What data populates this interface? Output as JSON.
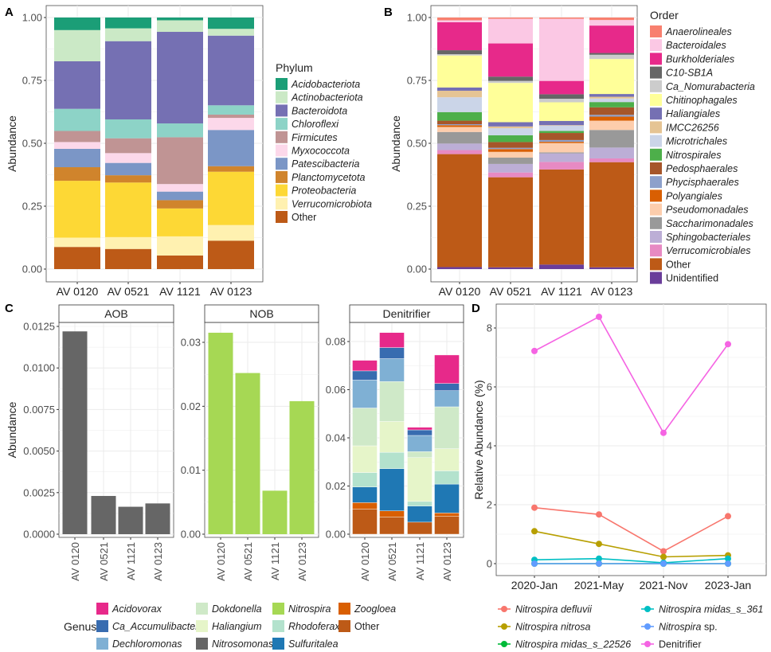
{
  "panel_labels": {
    "a": "A",
    "b": "B",
    "c": "C",
    "d": "D"
  },
  "chart_data": [
    {
      "id": "A",
      "type": "bar",
      "stacked": true,
      "categories": [
        "AV 0120",
        "AV 0521",
        "AV 1121",
        "AV 0123"
      ],
      "ylabel": "Abundance",
      "ylim": [
        0,
        1
      ],
      "yticks": [
        "0.00",
        "0.25",
        "0.50",
        "0.75",
        "1.00"
      ],
      "legend_title": "Phylum",
      "legend_position": "right",
      "series": [
        {
          "name": "Acidobacteriota",
          "italic": true,
          "color": "#1b9e77",
          "values": [
            0.05,
            0.043,
            0.011,
            0.045
          ]
        },
        {
          "name": "Actinobacteriota",
          "italic": true,
          "color": "#cbe9c6",
          "values": [
            0.124,
            0.051,
            0.046,
            0.027
          ]
        },
        {
          "name": "Bacteroidota",
          "italic": true,
          "color": "#7570b3",
          "values": [
            0.189,
            0.311,
            0.364,
            0.277
          ]
        },
        {
          "name": "Chloroflexi",
          "italic": true,
          "color": "#8dd3c7",
          "values": [
            0.088,
            0.075,
            0.055,
            0.037
          ]
        },
        {
          "name": "Firmicutes",
          "italic": true,
          "color": "#c09494",
          "values": [
            0.044,
            0.059,
            0.186,
            0.013
          ]
        },
        {
          "name": "Myxococcota",
          "italic": true,
          "color": "#fcd8ea",
          "values": [
            0.027,
            0.039,
            0.03,
            0.048
          ]
        },
        {
          "name": "Patescibacteria",
          "italic": true,
          "color": "#7b96c6",
          "values": [
            0.073,
            0.049,
            0.034,
            0.144
          ]
        },
        {
          "name": "Planctomycetota",
          "italic": true,
          "color": "#d0842c",
          "values": [
            0.054,
            0.029,
            0.033,
            0.022
          ]
        },
        {
          "name": "Proteobacteria",
          "italic": true,
          "color": "#fdd835",
          "values": [
            0.226,
            0.217,
            0.111,
            0.212
          ]
        },
        {
          "name": "Verrucomicrobiota",
          "italic": true,
          "color": "#fff1b0",
          "values": [
            0.037,
            0.047,
            0.076,
            0.062
          ]
        },
        {
          "name": "Other",
          "italic": false,
          "color": "#bd5a17",
          "values": [
            0.088,
            0.08,
            0.054,
            0.113
          ]
        }
      ]
    },
    {
      "id": "B",
      "type": "bar",
      "stacked": true,
      "categories": [
        "AV 0120",
        "AV 0521",
        "AV 1121",
        "AV 0123"
      ],
      "ylabel": "Abundance",
      "ylim": [
        0,
        1
      ],
      "yticks": [
        "0.00",
        "0.25",
        "0.50",
        "0.75",
        "1.00"
      ],
      "legend_title": "Order",
      "legend_position": "right",
      "series": [
        {
          "name": "Anaerolineales",
          "italic": true,
          "color": "#f8806f",
          "values": [
            0.011,
            0.005,
            0.005,
            0.01
          ]
        },
        {
          "name": "Bacteroidales",
          "italic": true,
          "color": "#fbc8e4",
          "values": [
            0.008,
            0.098,
            0.247,
            0.022
          ]
        },
        {
          "name": "Burkholderiales",
          "italic": true,
          "color": "#e7298a",
          "values": [
            0.111,
            0.132,
            0.053,
            0.109
          ]
        },
        {
          "name": "C10-SB1A",
          "italic": true,
          "color": "#666666",
          "values": [
            0.016,
            0.017,
            0.018,
            0.007
          ]
        },
        {
          "name": "Ca_Nomurabacteria",
          "italic": true,
          "color": "#cccccc",
          "values": [
            0.005,
            0.008,
            0.014,
            0.017
          ]
        },
        {
          "name": "Chitinophagales",
          "italic": true,
          "color": "#ffff99",
          "values": [
            0.127,
            0.156,
            0.074,
            0.139
          ]
        },
        {
          "name": "Haliangiales",
          "italic": true,
          "color": "#7570b3",
          "values": [
            0.013,
            0.017,
            0.017,
            0.011
          ]
        },
        {
          "name": "IMCC26256",
          "italic": true,
          "color": "#e5c494",
          "values": [
            0.026,
            0.007,
            0.002,
            0.007
          ]
        },
        {
          "name": "Microtrichales",
          "italic": true,
          "color": "#cbd5e8",
          "values": [
            0.059,
            0.028,
            0.021,
            0.014
          ]
        },
        {
          "name": "Nitrospirales",
          "italic": true,
          "color": "#4daf4a",
          "values": [
            0.034,
            0.027,
            0.008,
            0.021
          ]
        },
        {
          "name": "Pedosphaerales",
          "italic": true,
          "color": "#a6562a",
          "values": [
            0.014,
            0.023,
            0.028,
            0.03
          ]
        },
        {
          "name": "Phycisphaerales",
          "italic": true,
          "color": "#8da0cb",
          "values": [
            0.004,
            0.005,
            0.007,
            0.007
          ]
        },
        {
          "name": "Polyangiales",
          "italic": true,
          "color": "#d95f02",
          "values": [
            0.007,
            0.011,
            0.005,
            0.016
          ]
        },
        {
          "name": "Pseudomonadales",
          "italic": true,
          "color": "#fdcdac",
          "values": [
            0.02,
            0.023,
            0.037,
            0.037
          ]
        },
        {
          "name": "Saccharimonadales",
          "italic": true,
          "color": "#999999",
          "values": [
            0.046,
            0.025,
            0.004,
            0.07
          ]
        },
        {
          "name": "Sphingobacteriales",
          "italic": true,
          "color": "#bcaed6",
          "values": [
            0.026,
            0.034,
            0.034,
            0.043
          ]
        },
        {
          "name": "Verrucomicrobiales",
          "italic": true,
          "color": "#e78ac3",
          "values": [
            0.016,
            0.019,
            0.03,
            0.015
          ]
        },
        {
          "name": "Other",
          "italic": false,
          "color": "#bd5a17",
          "values": [
            0.449,
            0.358,
            0.378,
            0.418
          ]
        },
        {
          "name": "Unidentified",
          "italic": false,
          "color": "#6a3d9a",
          "values": [
            0.008,
            0.007,
            0.018,
            0.007
          ]
        }
      ]
    },
    {
      "id": "C-AOB",
      "type": "bar",
      "facet": "AOB",
      "categories": [
        "AV 0120",
        "AV 0521",
        "AV 1121",
        "AV 0123"
      ],
      "ylabel": "Abundance",
      "ylim": [
        0,
        0.0125
      ],
      "yticks": [
        "0.0000",
        "0.0025",
        "0.0050",
        "0.0075",
        "0.0100",
        "0.0125"
      ],
      "series": [
        {
          "name": "Nitrosomonas",
          "color": "#666666",
          "values": [
            0.0122,
            0.0023,
            0.00165,
            0.00185
          ]
        }
      ]
    },
    {
      "id": "C-NOB",
      "type": "bar",
      "facet": "NOB",
      "categories": [
        "AV 0120",
        "AV 0521",
        "AV 1121",
        "AV 0123"
      ],
      "ylim": [
        0,
        0.03
      ],
      "yticks": [
        "0.00",
        "0.01",
        "0.02",
        "0.03"
      ],
      "series": [
        {
          "name": "Nitrospira",
          "color": "#a6d854",
          "values": [
            0.0315,
            0.0252,
            0.0068,
            0.0208
          ]
        }
      ]
    },
    {
      "id": "C-Denitrifier",
      "type": "bar",
      "stacked": true,
      "facet": "Denitrifier",
      "categories": [
        "AV 0120",
        "AV 0521",
        "AV 1121",
        "AV 0123"
      ],
      "ylim": [
        0,
        0.08
      ],
      "yticks": [
        "0.00",
        "0.02",
        "0.04",
        "0.06",
        "0.08"
      ],
      "series": [
        {
          "name": "Acidovorax",
          "color": "#e7298a",
          "values": [
            0.0044,
            0.0062,
            0.0011,
            0.0118
          ]
        },
        {
          "name": "Ca_Accumulibacter",
          "color": "#386cb0",
          "values": [
            0.0038,
            0.0046,
            0.0023,
            0.003
          ]
        },
        {
          "name": "Dechloromonas",
          "color": "#7fb0d4",
          "values": [
            0.0116,
            0.0095,
            0.0067,
            0.0067
          ]
        },
        {
          "name": "Dokdonella",
          "color": "#cfe9c8",
          "values": [
            0.0157,
            0.0166,
            0.0025,
            0.0174
          ]
        },
        {
          "name": "Haliangium",
          "color": "#e6f5c9",
          "values": [
            0.0111,
            0.0128,
            0.0182,
            0.0092
          ]
        },
        {
          "name": "Rhodoferax",
          "color": "#b3e2cd",
          "values": [
            0.006,
            0.0068,
            0.0019,
            0.0055
          ]
        },
        {
          "name": "Sulfuritalea",
          "color": "#1f78b4",
          "values": [
            0.0065,
            0.0175,
            0.0067,
            0.012
          ]
        },
        {
          "name": "Zoogloea",
          "color": "#d95f02",
          "values": [
            0.0027,
            0.0026,
            0.0,
            0.0014
          ]
        },
        {
          "name": "Other",
          "color": "#bd5a17",
          "values": [
            0.0104,
            0.0071,
            0.005,
            0.0074
          ]
        }
      ]
    },
    {
      "id": "D",
      "type": "line",
      "categories": [
        "2020-Jan",
        "2021-May",
        "2021-Nov",
        "2023-Jan"
      ],
      "ylabel": "Relative Abundance (%)",
      "ylim": [
        -0.4,
        8.8
      ],
      "yticks": [
        "0",
        "2",
        "4",
        "6",
        "8"
      ],
      "legend_position": "bottom",
      "series": [
        {
          "name": "Nitrospira defluvii",
          "italic": true,
          "color": "#f8766d",
          "values": [
            1.9,
            1.67,
            0.42,
            1.61
          ]
        },
        {
          "name": "Nitrospira nitrosa",
          "italic": true,
          "color": "#b79f00",
          "values": [
            1.1,
            0.67,
            0.23,
            0.28
          ]
        },
        {
          "name": "Nitrospira midas_s_22526",
          "italic": true,
          "color": "#00ba38",
          "values": [
            0.0,
            0.0,
            0.0,
            0.0
          ]
        },
        {
          "name": "Nitrospira midas_s_361",
          "italic": true,
          "color": "#00bfc4",
          "values": [
            0.13,
            0.17,
            0.03,
            0.17
          ]
        },
        {
          "name": "Nitrospira sp.",
          "italic_part": "Nitrospira",
          "color": "#619cff",
          "values": [
            0.0,
            0.0,
            0.0,
            0.0
          ]
        },
        {
          "name": "Denitrifier",
          "italic": false,
          "color": "#f564e3",
          "values": [
            7.22,
            8.38,
            4.44,
            7.45
          ]
        }
      ]
    }
  ],
  "genus_legend": {
    "title": "Genus",
    "items": [
      {
        "name": "Acidovorax",
        "color": "#e7298a"
      },
      {
        "name": "Ca_Accumulibacter",
        "color": "#386cb0"
      },
      {
        "name": "Dechloromonas",
        "color": "#7fb0d4"
      },
      {
        "name": "Dokdonella",
        "color": "#cfe9c8"
      },
      {
        "name": "Haliangium",
        "color": "#e6f5c9"
      },
      {
        "name": "Nitrosomonas",
        "color": "#666666"
      },
      {
        "name": "Nitrospira",
        "color": "#a6d854"
      },
      {
        "name": "Rhodoferax",
        "color": "#b3e2cd"
      },
      {
        "name": "Sulfuritalea",
        "color": "#1f78b4"
      },
      {
        "name": "Zoogloea",
        "color": "#d95f02"
      },
      {
        "name": "Other",
        "color": "#bd5a17"
      }
    ]
  }
}
